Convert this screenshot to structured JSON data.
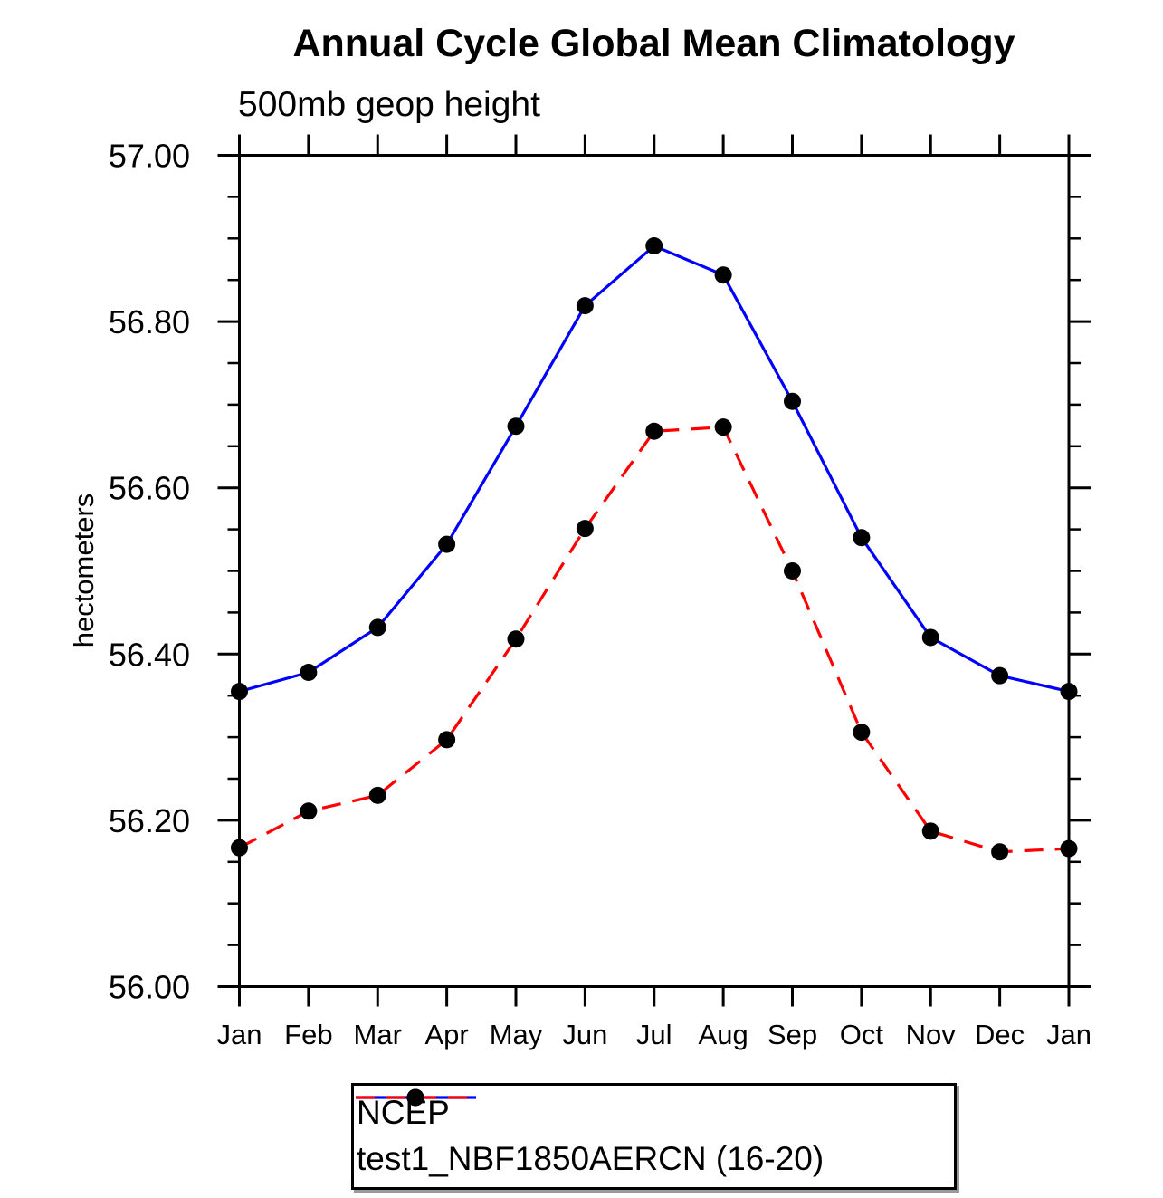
{
  "chart_data": {
    "type": "line",
    "title": "Annual Cycle Global Mean Climatology",
    "subtitle": "500mb geop height",
    "ylabel": "hectometers",
    "xlabel": "",
    "categories": [
      "Jan",
      "Feb",
      "Mar",
      "Apr",
      "May",
      "Jun",
      "Jul",
      "Aug",
      "Sep",
      "Oct",
      "Nov",
      "Dec",
      "Jan"
    ],
    "ylim": [
      56.0,
      57.0
    ],
    "ytick_major_interval": 0.2,
    "ytick_minor_interval": 0.05,
    "ytick_labels": [
      "56.00",
      "56.20",
      "56.40",
      "56.60",
      "56.80",
      "57.00"
    ],
    "grid": false,
    "legend_position": "bottom-center",
    "axis_color": "#000000",
    "marker_color": "#000000",
    "series": [
      {
        "name": "NCEP",
        "color": "#0000ff",
        "dash": "solid",
        "values": [
          56.355,
          56.378,
          56.432,
          56.532,
          56.674,
          56.819,
          56.891,
          56.856,
          56.704,
          56.54,
          56.42,
          56.374,
          56.355
        ]
      },
      {
        "name": "test1_NBF1850AERCN (16-20)",
        "color": "#ff0000",
        "dash": "dashed",
        "values": [
          56.167,
          56.211,
          56.23,
          56.297,
          56.418,
          56.551,
          56.668,
          56.673,
          56.5,
          56.306,
          56.187,
          56.162,
          56.166
        ]
      }
    ]
  }
}
